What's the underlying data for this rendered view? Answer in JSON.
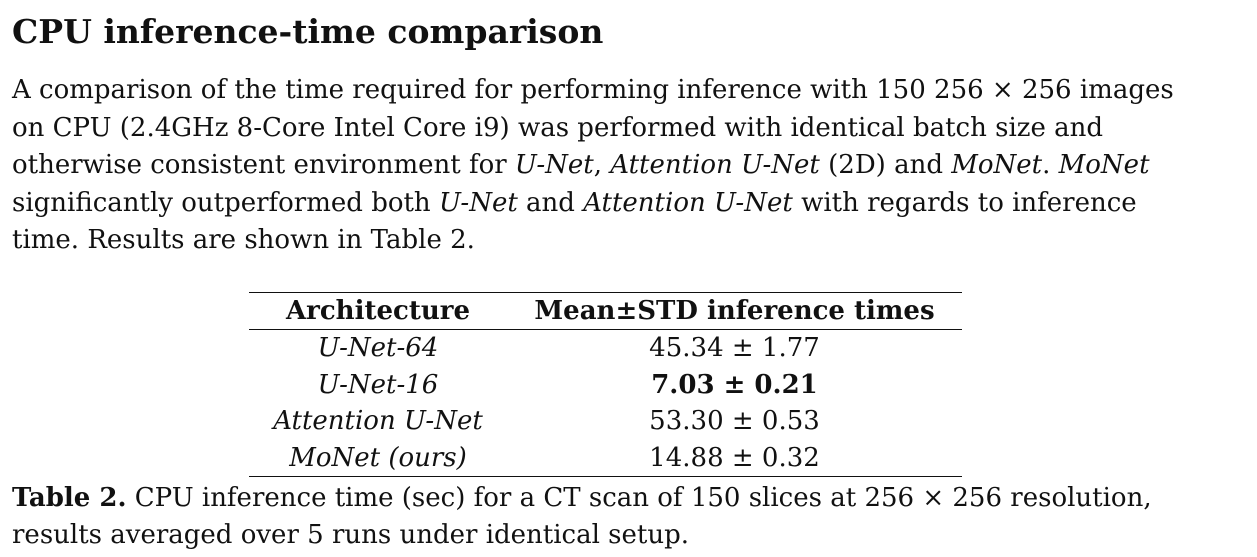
{
  "section": {
    "title": "CPU inference-time comparison"
  },
  "paragraph": {
    "line1": "A comparison of the time required for performing inference with 150 256 × 256 images",
    "line2": "on CPU (2.4GHz 8-Core Intel Core i9) was performed with identical batch size and",
    "line3_a": "otherwise consistent environment for ",
    "line3_b": "U-Net",
    "line3_c": ", ",
    "line3_d": "Attention U-Net",
    "line3_e": " (2D) and ",
    "line3_f": "MoNet",
    "line3_g": ". ",
    "line3_h": "MoNet",
    "line4_a": "significantly outperformed both ",
    "line4_b": "U-Net",
    "line4_c": " and ",
    "line4_d": "Attention U-Net",
    "line4_e": " with regards to inference",
    "line5": "time. Results are shown in Table 2."
  },
  "table": {
    "headers": [
      "Architecture",
      "Mean±STD inference times"
    ],
    "rows": [
      {
        "architecture": "U-Net-64",
        "time": "45.34 ± 1.77"
      },
      {
        "architecture": "U-Net-16",
        "time": "7.03 ± 0.21"
      },
      {
        "architecture": "Attention U-Net",
        "time": "53.30 ± 0.53"
      },
      {
        "architecture": "MoNet (ours)",
        "time": "14.88 ± 0.32"
      }
    ],
    "caption_label": "Table 2.",
    "caption_line1": " CPU inference time (sec) for a CT scan of 150 slices at 256 × 256 resolution,",
    "caption_line2": "results averaged over 5 runs under identical setup."
  }
}
